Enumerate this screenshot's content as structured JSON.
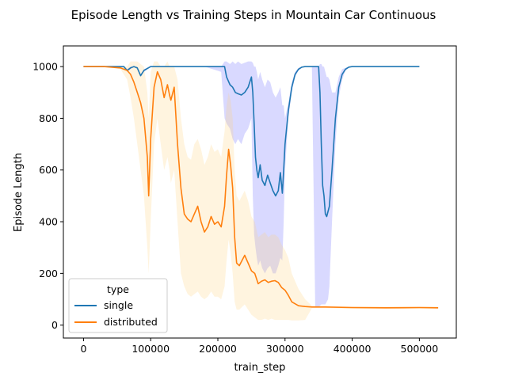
{
  "chart_data": {
    "type": "line",
    "title": "Episode Length vs Training Steps in Mountain Car Continuous",
    "xlabel": "train_step",
    "ylabel": "Episode Length",
    "xlim": [
      -30000,
      555000
    ],
    "ylim": [
      -50,
      1080
    ],
    "xticks": [
      0,
      100000,
      200000,
      300000,
      400000,
      500000
    ],
    "xtick_labels": [
      "0",
      "100000",
      "200000",
      "300000",
      "400000",
      "500000"
    ],
    "yticks": [
      0,
      200,
      400,
      600,
      800,
      1000
    ],
    "ytick_labels": [
      "0",
      "200",
      "400",
      "600",
      "800",
      "1000"
    ],
    "grid": false,
    "legend": {
      "title": "type",
      "placement": "lower-left"
    },
    "series": [
      {
        "name": "single",
        "color": "#1f77b4",
        "band_color": "#4040ff",
        "x": [
          0,
          20000,
          40000,
          60000,
          65000,
          70000,
          75000,
          80000,
          85000,
          90000,
          100000,
          120000,
          150000,
          180000,
          205000,
          210000,
          213000,
          218000,
          222000,
          226000,
          230000,
          235000,
          240000,
          245000,
          250000,
          252000,
          254000,
          256000,
          258000,
          260000,
          263000,
          266000,
          270000,
          274000,
          278000,
          282000,
          286000,
          290000,
          293000,
          296000,
          298000,
          300000,
          305000,
          310000,
          315000,
          320000,
          325000,
          330000,
          335000,
          340000,
          345000,
          350000,
          352000,
          354000,
          356000,
          358000,
          360000,
          362000,
          364000,
          366000,
          370000,
          375000,
          380000,
          385000,
          390000,
          395000,
          400000,
          410000,
          450000,
          500000
        ],
        "y": [
          1000,
          1000,
          1000,
          1000,
          985,
          995,
          1000,
          995,
          965,
          985,
          1000,
          1000,
          1000,
          1000,
          1000,
          1000,
          960,
          930,
          920,
          900,
          895,
          890,
          900,
          920,
          960,
          900,
          780,
          650,
          600,
          570,
          620,
          560,
          540,
          580,
          550,
          520,
          500,
          520,
          590,
          510,
          600,
          700,
          830,
          920,
          970,
          990,
          998,
          1000,
          1000,
          1000,
          1000,
          1000,
          900,
          700,
          540,
          500,
          430,
          420,
          440,
          460,
          600,
          800,
          920,
          970,
          990,
          998,
          1000,
          1000,
          1000,
          1000
        ],
        "band_low": [
          1000,
          1000,
          1000,
          1000,
          980,
          990,
          1000,
          990,
          960,
          980,
          1000,
          1000,
          1000,
          1000,
          980,
          800,
          780,
          760,
          720,
          700,
          720,
          700,
          740,
          760,
          800,
          500,
          350,
          300,
          260,
          230,
          250,
          220,
          200,
          220,
          230,
          200,
          200,
          230,
          260,
          250,
          400,
          600,
          800,
          900,
          960,
          985,
          995,
          1000,
          1000,
          1000,
          70,
          70,
          75,
          80,
          80,
          80,
          80,
          90,
          100,
          150,
          400,
          700,
          880,
          950,
          985,
          995,
          1000,
          1000,
          1000,
          1000
        ],
        "band_high": [
          1000,
          1000,
          1000,
          1000,
          990,
          1000,
          1000,
          1000,
          970,
          990,
          1000,
          1000,
          1000,
          1000,
          1000,
          1020,
          1020,
          1010,
          1020,
          1010,
          1020,
          1010,
          1015,
          1020,
          1020,
          1015,
          1000,
          1000,
          980,
          950,
          980,
          950,
          920,
          950,
          940,
          900,
          880,
          900,
          920,
          850,
          850,
          800,
          860,
          940,
          980,
          995,
          1000,
          1000,
          1000,
          1000,
          1000,
          1000,
          1010,
          1010,
          1000,
          1000,
          980,
          960,
          960,
          950,
          900,
          900,
          960,
          990,
          995,
          1000,
          1000,
          1000,
          1000,
          1000
        ]
      },
      {
        "name": "distributed",
        "color": "#ff7f0e",
        "band_color": "#ffd27f",
        "x": [
          0,
          30000,
          55000,
          60000,
          65000,
          70000,
          75000,
          80000,
          85000,
          90000,
          95000,
          97000,
          100000,
          105000,
          110000,
          115000,
          120000,
          125000,
          128000,
          130000,
          135000,
          140000,
          145000,
          150000,
          155000,
          160000,
          165000,
          170000,
          175000,
          180000,
          185000,
          190000,
          195000,
          200000,
          205000,
          210000,
          213000,
          216000,
          219000,
          222000,
          225000,
          228000,
          232000,
          236000,
          240000,
          245000,
          250000,
          255000,
          260000,
          265000,
          270000,
          275000,
          280000,
          285000,
          290000,
          295000,
          300000,
          305000,
          310000,
          320000,
          330000,
          340000,
          360000,
          400000,
          450000,
          500000,
          528000
        ],
        "y": [
          1000,
          1000,
          995,
          990,
          985,
          970,
          940,
          900,
          860,
          800,
          650,
          500,
          720,
          920,
          980,
          950,
          880,
          930,
          890,
          870,
          920,
          700,
          530,
          430,
          410,
          400,
          430,
          460,
          400,
          360,
          380,
          420,
          390,
          400,
          380,
          460,
          580,
          680,
          620,
          530,
          340,
          240,
          230,
          250,
          270,
          240,
          210,
          200,
          160,
          170,
          175,
          165,
          170,
          172,
          165,
          145,
          135,
          115,
          90,
          75,
          72,
          70,
          70,
          68,
          67,
          68,
          67
        ],
        "band_low": [
          1000,
          1000,
          990,
          970,
          950,
          880,
          800,
          700,
          600,
          500,
          300,
          200,
          400,
          700,
          800,
          700,
          600,
          650,
          600,
          550,
          600,
          400,
          200,
          150,
          120,
          110,
          120,
          130,
          110,
          100,
          110,
          130,
          110,
          110,
          100,
          150,
          250,
          330,
          280,
          200,
          90,
          60,
          60,
          70,
          80,
          60,
          40,
          30,
          20,
          20,
          25,
          20,
          25,
          20,
          20,
          20,
          20,
          20,
          18,
          18,
          20,
          65,
          65,
          63,
          62,
          63,
          62
        ],
        "band_high": [
          1000,
          1000,
          1000,
          1000,
          1000,
          1020,
          1020,
          1020,
          1010,
          1000,
          900,
          800,
          980,
          1020,
          1020,
          1000,
          1000,
          1020,
          1000,
          1000,
          1000,
          950,
          800,
          700,
          650,
          640,
          700,
          720,
          680,
          620,
          650,
          700,
          670,
          680,
          650,
          750,
          850,
          900,
          870,
          800,
          600,
          500,
          480,
          500,
          520,
          480,
          420,
          400,
          340,
          350,
          360,
          340,
          350,
          350,
          340,
          310,
          290,
          260,
          200,
          140,
          100,
          75,
          74,
          72,
          72,
          72,
          72
        ]
      }
    ]
  }
}
